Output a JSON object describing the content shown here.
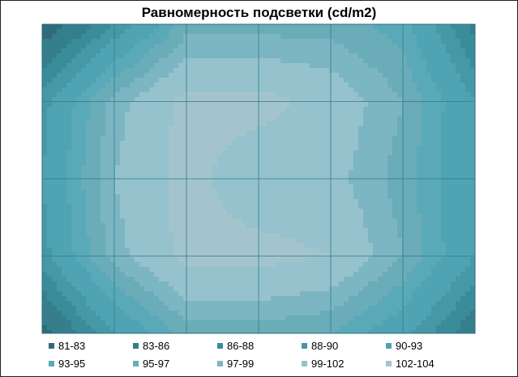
{
  "chart_data": {
    "type": "heatmap",
    "title": "Равномерность подсветки (cd/m2)",
    "rows": 5,
    "cols": 7,
    "values": [
      [
        81,
        88,
        96,
        96,
        96,
        94,
        85
      ],
      [
        89,
        98,
        103,
        103,
        101,
        97,
        90
      ],
      [
        90,
        99,
        103,
        100,
        100,
        96,
        90
      ],
      [
        89,
        98,
        103,
        103,
        102,
        97,
        90
      ],
      [
        82,
        90,
        96,
        96,
        95,
        91,
        84
      ]
    ],
    "legend": {
      "placement": "bottom",
      "entries": [
        {
          "label": "81-83",
          "color": "#2f6b78"
        },
        {
          "label": "83-86",
          "color": "#357f8d"
        },
        {
          "label": "86-88",
          "color": "#3a8c9a"
        },
        {
          "label": "88-90",
          "color": "#4698a6"
        },
        {
          "label": "90-93",
          "color": "#4fa3b2"
        },
        {
          "label": "93-95",
          "color": "#5aa9b8"
        },
        {
          "label": "95-97",
          "color": "#6aacb8"
        },
        {
          "label": "97-99",
          "color": "#7cb6c2"
        },
        {
          "label": "99-102",
          "color": "#95c2cc"
        },
        {
          "label": "102-104",
          "color": "#a3c4cd"
        }
      ]
    },
    "grid": true
  }
}
